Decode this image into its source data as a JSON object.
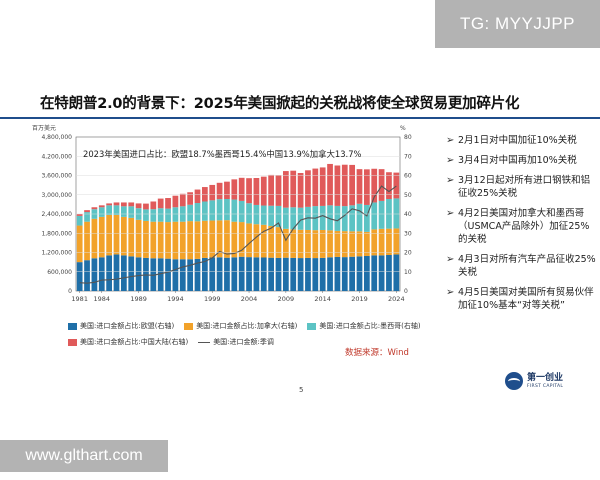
{
  "watermarks": {
    "top": "TG: MYYJJPP",
    "bottom": "www.glthart.com"
  },
  "slide": {
    "title": "在特朗普2.0的背景下：2025年美国掀起的关税战将使全球贸易更加碎片化",
    "page_number": "5",
    "data_source": "数据来源：Wind"
  },
  "bullets": [
    "2月1日对中国加征10%关税",
    "3月4日对中国再加10%关税",
    "3月12日起对所有进口钢铁和铝征收25%关税",
    "4月2日美国对加拿大和墨西哥（USMCA产品除外）加征25%的关税",
    "4月3日对所有汽车产品征收25%关税",
    "4月5日美国对美国所有贸易伙伴加征10%基本“对等关税”"
  ],
  "logo": {
    "name": "第一创业",
    "name_en": "FIRST CAPITAL"
  },
  "colors": {
    "europe": "#1f6fa8",
    "canada": "#f2a22a",
    "mexico": "#5cc3c4",
    "china": "#e05a5a",
    "total_line": "#555555",
    "title_rule": "#1f4e8c",
    "source_text": "#c0392b"
  },
  "chart_data": {
    "type": "bar",
    "stacked": true,
    "annotation": "2023年美国进口占比：欧盟18.7%墨西哥15.4%中国13.9%加拿大13.7%",
    "y_unit_left": "百万美元",
    "y_unit_right": "%",
    "x_tick_labels": [
      "1981",
      "1984",
      "1989",
      "1994",
      "1999",
      "2004",
      "2009",
      "2014",
      "2019",
      "2024"
    ],
    "y_left_ticks": [
      "0",
      "600,000",
      "1,200,000",
      "1,800,000",
      "2,400,000",
      "3,000,000",
      "3,600,000",
      "4,200,000",
      "4,800,000"
    ],
    "y_right_ticks": [
      "0",
      "10",
      "20",
      "30",
      "40",
      "50",
      "60",
      "70",
      "80"
    ],
    "ylim_left": [
      0,
      4800000
    ],
    "ylim_right": [
      0,
      80
    ],
    "x": [
      1981,
      1982,
      1983,
      1984,
      1985,
      1986,
      1987,
      1988,
      1989,
      1990,
      1991,
      1992,
      1993,
      1994,
      1995,
      1996,
      1997,
      1998,
      1999,
      2000,
      2001,
      2002,
      2003,
      2004,
      2005,
      2006,
      2007,
      2008,
      2009,
      2010,
      2011,
      2012,
      2013,
      2014,
      2015,
      2016,
      2017,
      2018,
      2019,
      2020,
      2021,
      2022,
      2023,
      2024
    ],
    "series": [
      {
        "name": "美国:进口金额占比:欧盟(右轴)",
        "axis": "right",
        "values": [
          15,
          16,
          17,
          17.5,
          18.5,
          19,
          18.5,
          18,
          17.5,
          17.2,
          17,
          17,
          16.8,
          16.5,
          16.5,
          16.5,
          16.7,
          17.2,
          17.4,
          17.5,
          17.3,
          17.5,
          17.8,
          17.6,
          17.5,
          17.4,
          17.3,
          17.2,
          17.3,
          17.2,
          17.1,
          17.2,
          17.1,
          17.2,
          17.5,
          17.7,
          17.6,
          17.8,
          18,
          18.2,
          18.5,
          18.5,
          18.7,
          19
        ]
      },
      {
        "name": "美国:进口金额占比:加拿大(右轴)",
        "axis": "right",
        "values": [
          19,
          20,
          20.5,
          21,
          21,
          20.5,
          20,
          20,
          19.5,
          19.2,
          19,
          19,
          19,
          19.5,
          19.5,
          19.8,
          19.5,
          19.3,
          19.2,
          19.2,
          19.5,
          18.5,
          18,
          17.5,
          17.2,
          17,
          16.5,
          16,
          15,
          14.8,
          14.7,
          14.5,
          14.5,
          14.5,
          14,
          13.5,
          13.5,
          13.2,
          13,
          12.5,
          13.5,
          13.8,
          13.7,
          13.5
        ]
      },
      {
        "name": "美国:进口金额占比:墨西哥(右轴)",
        "axis": "right",
        "values": [
          5,
          5,
          5,
          5,
          5,
          5,
          5.5,
          6,
          6,
          6,
          6.5,
          7,
          7,
          7.5,
          8,
          8.5,
          9.5,
          10,
          10.5,
          11,
          11,
          11.5,
          11,
          10.5,
          10,
          10,
          10.5,
          11,
          11,
          11.5,
          11.5,
          12,
          12.5,
          12.5,
          13,
          13,
          13,
          13.5,
          14.3,
          14,
          14,
          14.5,
          15.4,
          15.6
        ]
      },
      {
        "name": "美国:进口金额占比:中国大陆(右轴)",
        "axis": "right",
        "values": [
          1,
          1,
          1,
          1,
          1,
          1.5,
          2,
          2,
          2.5,
          3,
          4,
          5,
          5.5,
          6,
          6.5,
          6.5,
          7,
          7.5,
          8,
          8.5,
          9,
          10.5,
          12,
          13,
          14,
          15,
          16,
          16,
          19,
          19,
          18,
          19,
          19.5,
          20,
          21.5,
          21,
          21.5,
          21,
          18,
          18.5,
          17.5,
          16.5,
          13.9,
          13.4
        ]
      },
      {
        "name": "美国:进口金额:季调",
        "axis": "left",
        "type": "line",
        "values": [
          260000,
          245000,
          270000,
          340000,
          350000,
          370000,
          410000,
          450000,
          480000,
          500000,
          490000,
          540000,
          590000,
          670000,
          750000,
          800000,
          870000,
          920000,
          1030000,
          1230000,
          1150000,
          1170000,
          1270000,
          1480000,
          1680000,
          1860000,
          1960000,
          2120000,
          1580000,
          1940000,
          2210000,
          2280000,
          2270000,
          2350000,
          2250000,
          2190000,
          2360000,
          2560000,
          2500000,
          2340000,
          2930000,
          3270000,
          3100000,
          3270000
        ]
      }
    ]
  }
}
